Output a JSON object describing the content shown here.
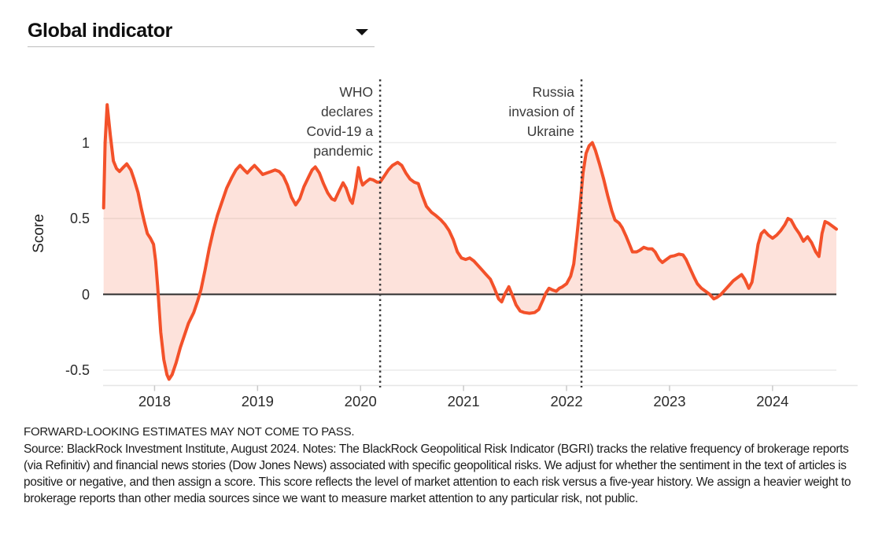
{
  "header": {
    "title": "Global indicator",
    "dropdown_icon": "caret-down"
  },
  "footer": {
    "disclaimer": "FORWARD-LOOKING ESTIMATES MAY NOT COME TO PASS.",
    "source": "Source: BlackRock Investment Institute, August 2024. Notes: The BlackRock Geopolitical Risk Indicator (BGRI) tracks the relative frequency of brokerage reports (via Refinitiv) and financial news stories (Dow Jones News) associated with specific geopolitical risks. We adjust for whether the sentiment in the text of articles is positive or negative, and then assign a score. This score reflects the level of market attention to each risk versus a five-year history. We assign a heavier weight to brokerage reports than other media sources since we want to measure market attention to any particular risk, not public."
  },
  "chart_data": {
    "type": "area",
    "title": "Global indicator",
    "xlabel": "",
    "ylabel": "Score",
    "xlim": [
      2017.5,
      2024.62
    ],
    "ylim": [
      -0.6,
      1.42
    ],
    "grid": true,
    "legend": "none",
    "line_color": "#F3512A",
    "fill_color": "rgba(243,81,42,0.17)",
    "zero_line_color": "#2b2b2b",
    "gridline_color": "#ececec",
    "annotation_line_color": "#3b3b3b",
    "x_ticks": [
      {
        "v": 2018,
        "label": "2018"
      },
      {
        "v": 2019,
        "label": "2019"
      },
      {
        "v": 2020,
        "label": "2020"
      },
      {
        "v": 2021,
        "label": "2021"
      },
      {
        "v": 2022,
        "label": "2022"
      },
      {
        "v": 2023,
        "label": "2023"
      },
      {
        "v": 2024,
        "label": "2024"
      }
    ],
    "y_ticks": [
      {
        "v": 1,
        "label": "1"
      },
      {
        "v": 0.5,
        "label": "0.5"
      },
      {
        "v": 0,
        "label": "0"
      },
      {
        "v": -0.5,
        "label": "-0.5"
      }
    ],
    "annotations": [
      {
        "id": "who",
        "label": "WHO declares Covid-19 a pandemic",
        "lines": [
          "WHO",
          "declares",
          "Covid-19 a",
          "pandemic"
        ],
        "x": 2020.19
      },
      {
        "id": "russia",
        "label": "Russia invasion of Ukraine",
        "lines": [
          "Russia",
          "invasion of",
          "Ukraine"
        ],
        "x": 2022.145
      }
    ],
    "series": [
      {
        "name": "Global indicator (BGRI score)",
        "points": [
          [
            2017.505,
            0.57
          ],
          [
            2017.52,
            1.0
          ],
          [
            2017.54,
            1.25
          ],
          [
            2017.57,
            1.05
          ],
          [
            2017.6,
            0.88
          ],
          [
            2017.63,
            0.83
          ],
          [
            2017.66,
            0.81
          ],
          [
            2017.7,
            0.84
          ],
          [
            2017.73,
            0.86
          ],
          [
            2017.77,
            0.82
          ],
          [
            2017.8,
            0.76
          ],
          [
            2017.84,
            0.67
          ],
          [
            2017.87,
            0.57
          ],
          [
            2017.9,
            0.48
          ],
          [
            2017.93,
            0.4
          ],
          [
            2017.96,
            0.37
          ],
          [
            2017.99,
            0.33
          ],
          [
            2018.01,
            0.22
          ],
          [
            2018.03,
            0.05
          ],
          [
            2018.06,
            -0.25
          ],
          [
            2018.09,
            -0.43
          ],
          [
            2018.12,
            -0.53
          ],
          [
            2018.14,
            -0.56
          ],
          [
            2018.17,
            -0.53
          ],
          [
            2018.21,
            -0.45
          ],
          [
            2018.25,
            -0.35
          ],
          [
            2018.29,
            -0.27
          ],
          [
            2018.33,
            -0.19
          ],
          [
            2018.38,
            -0.12
          ],
          [
            2018.42,
            -0.04
          ],
          [
            2018.45,
            0.03
          ],
          [
            2018.49,
            0.16
          ],
          [
            2018.53,
            0.3
          ],
          [
            2018.57,
            0.42
          ],
          [
            2018.61,
            0.52
          ],
          [
            2018.65,
            0.6
          ],
          [
            2018.7,
            0.7
          ],
          [
            2018.75,
            0.77
          ],
          [
            2018.79,
            0.82
          ],
          [
            2018.83,
            0.85
          ],
          [
            2018.87,
            0.82
          ],
          [
            2018.9,
            0.8
          ],
          [
            2018.94,
            0.83
          ],
          [
            2018.97,
            0.85
          ],
          [
            2019.01,
            0.82
          ],
          [
            2019.05,
            0.79
          ],
          [
            2019.09,
            0.8
          ],
          [
            2019.13,
            0.81
          ],
          [
            2019.17,
            0.82
          ],
          [
            2019.21,
            0.81
          ],
          [
            2019.25,
            0.78
          ],
          [
            2019.29,
            0.72
          ],
          [
            2019.33,
            0.64
          ],
          [
            2019.37,
            0.59
          ],
          [
            2019.41,
            0.63
          ],
          [
            2019.45,
            0.71
          ],
          [
            2019.5,
            0.78
          ],
          [
            2019.53,
            0.82
          ],
          [
            2019.56,
            0.84
          ],
          [
            2019.6,
            0.8
          ],
          [
            2019.64,
            0.73
          ],
          [
            2019.68,
            0.67
          ],
          [
            2019.72,
            0.63
          ],
          [
            2019.75,
            0.62
          ],
          [
            2019.79,
            0.68
          ],
          [
            2019.83,
            0.735
          ],
          [
            2019.86,
            0.7
          ],
          [
            2019.9,
            0.62
          ],
          [
            2019.92,
            0.6
          ],
          [
            2019.95,
            0.7
          ],
          [
            2019.98,
            0.835
          ],
          [
            2020.0,
            0.76
          ],
          [
            2020.02,
            0.72
          ],
          [
            2020.05,
            0.74
          ],
          [
            2020.09,
            0.76
          ],
          [
            2020.12,
            0.755
          ],
          [
            2020.16,
            0.74
          ],
          [
            2020.19,
            0.74
          ],
          [
            2020.23,
            0.78
          ],
          [
            2020.27,
            0.82
          ],
          [
            2020.31,
            0.85
          ],
          [
            2020.36,
            0.87
          ],
          [
            2020.4,
            0.85
          ],
          [
            2020.44,
            0.8
          ],
          [
            2020.48,
            0.76
          ],
          [
            2020.52,
            0.74
          ],
          [
            2020.56,
            0.73
          ],
          [
            2020.6,
            0.65
          ],
          [
            2020.64,
            0.58
          ],
          [
            2020.69,
            0.54
          ],
          [
            2020.73,
            0.52
          ],
          [
            2020.78,
            0.49
          ],
          [
            2020.82,
            0.46
          ],
          [
            2020.86,
            0.42
          ],
          [
            2020.9,
            0.36
          ],
          [
            2020.94,
            0.28
          ],
          [
            2020.98,
            0.24
          ],
          [
            2021.02,
            0.23
          ],
          [
            2021.06,
            0.24
          ],
          [
            2021.1,
            0.22
          ],
          [
            2021.14,
            0.19
          ],
          [
            2021.18,
            0.16
          ],
          [
            2021.22,
            0.13
          ],
          [
            2021.26,
            0.1
          ],
          [
            2021.3,
            0.04
          ],
          [
            2021.34,
            -0.03
          ],
          [
            2021.37,
            -0.05
          ],
          [
            2021.4,
            0.0
          ],
          [
            2021.44,
            0.05
          ],
          [
            2021.47,
            0.0
          ],
          [
            2021.51,
            -0.07
          ],
          [
            2021.55,
            -0.11
          ],
          [
            2021.59,
            -0.12
          ],
          [
            2021.64,
            -0.125
          ],
          [
            2021.69,
            -0.12
          ],
          [
            2021.73,
            -0.1
          ],
          [
            2021.77,
            -0.04
          ],
          [
            2021.8,
            0.01
          ],
          [
            2021.83,
            0.04
          ],
          [
            2021.86,
            0.03
          ],
          [
            2021.9,
            0.02
          ],
          [
            2021.93,
            0.04
          ],
          [
            2021.96,
            0.05
          ],
          [
            2022.0,
            0.07
          ],
          [
            2022.04,
            0.12
          ],
          [
            2022.07,
            0.2
          ],
          [
            2022.1,
            0.38
          ],
          [
            2022.13,
            0.58
          ],
          [
            2022.16,
            0.8
          ],
          [
            2022.19,
            0.93
          ],
          [
            2022.22,
            0.98
          ],
          [
            2022.25,
            1.0
          ],
          [
            2022.28,
            0.95
          ],
          [
            2022.32,
            0.86
          ],
          [
            2022.36,
            0.76
          ],
          [
            2022.4,
            0.65
          ],
          [
            2022.44,
            0.55
          ],
          [
            2022.47,
            0.49
          ],
          [
            2022.51,
            0.47
          ],
          [
            2022.54,
            0.44
          ],
          [
            2022.58,
            0.38
          ],
          [
            2022.61,
            0.33
          ],
          [
            2022.64,
            0.28
          ],
          [
            2022.68,
            0.28
          ],
          [
            2022.71,
            0.29
          ],
          [
            2022.75,
            0.31
          ],
          [
            2022.79,
            0.3
          ],
          [
            2022.83,
            0.3
          ],
          [
            2022.86,
            0.28
          ],
          [
            2022.9,
            0.23
          ],
          [
            2022.93,
            0.21
          ],
          [
            2022.97,
            0.23
          ],
          [
            2023.01,
            0.25
          ],
          [
            2023.05,
            0.255
          ],
          [
            2023.09,
            0.265
          ],
          [
            2023.13,
            0.26
          ],
          [
            2023.16,
            0.23
          ],
          [
            2023.2,
            0.17
          ],
          [
            2023.24,
            0.11
          ],
          [
            2023.27,
            0.07
          ],
          [
            2023.31,
            0.04
          ],
          [
            2023.35,
            0.02
          ],
          [
            2023.39,
            0.0
          ],
          [
            2023.43,
            -0.03
          ],
          [
            2023.46,
            -0.02
          ],
          [
            2023.5,
            0.0
          ],
          [
            2023.54,
            0.03
          ],
          [
            2023.58,
            0.06
          ],
          [
            2023.62,
            0.09
          ],
          [
            2023.66,
            0.11
          ],
          [
            2023.7,
            0.13
          ],
          [
            2023.73,
            0.1
          ],
          [
            2023.77,
            0.04
          ],
          [
            2023.8,
            0.08
          ],
          [
            2023.83,
            0.2
          ],
          [
            2023.86,
            0.33
          ],
          [
            2023.89,
            0.4
          ],
          [
            2023.92,
            0.42
          ],
          [
            2023.96,
            0.39
          ],
          [
            2024.0,
            0.37
          ],
          [
            2024.04,
            0.39
          ],
          [
            2024.08,
            0.42
          ],
          [
            2024.12,
            0.46
          ],
          [
            2024.15,
            0.5
          ],
          [
            2024.18,
            0.49
          ],
          [
            2024.22,
            0.44
          ],
          [
            2024.26,
            0.4
          ],
          [
            2024.3,
            0.35
          ],
          [
            2024.34,
            0.38
          ],
          [
            2024.38,
            0.34
          ],
          [
            2024.42,
            0.28
          ],
          [
            2024.45,
            0.25
          ],
          [
            2024.48,
            0.4
          ],
          [
            2024.51,
            0.48
          ],
          [
            2024.54,
            0.47
          ],
          [
            2024.58,
            0.45
          ],
          [
            2024.62,
            0.43
          ]
        ]
      }
    ]
  }
}
